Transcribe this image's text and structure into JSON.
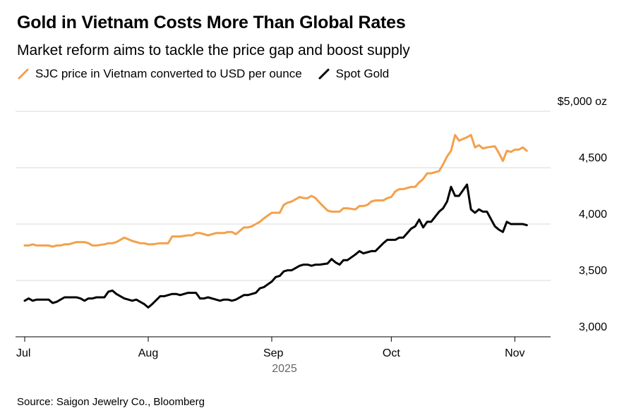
{
  "title": "Gold in Vietnam Costs More Than Global Rates",
  "subtitle": "Market reform aims to tackle the price gap and boost supply",
  "source": "Source: Saigon Jewelry Co., Bloomberg",
  "colors": {
    "sjc": "#f4a04a",
    "spot": "#000000",
    "grid": "#d9d9d9"
  },
  "chart_data": {
    "type": "line",
    "ylim": [
      3000,
      5000
    ],
    "y_ticks": [
      {
        "value": 3000,
        "label": "3,000"
      },
      {
        "value": 3500,
        "label": "3,500"
      },
      {
        "value": 4000,
        "label": "4,000"
      },
      {
        "value": 4500,
        "label": "4,500"
      },
      {
        "value": 5000,
        "label": "$5,000 oz"
      }
    ],
    "x_ticks": [
      {
        "value": "2025-07-01",
        "label": "Jul"
      },
      {
        "value": "2025-08-01",
        "label": "Aug"
      },
      {
        "value": "2025-09-01",
        "label": "Sep"
      },
      {
        "value": "2025-10-01",
        "label": "Oct"
      },
      {
        "value": "2025-11-01",
        "label": "Nov"
      }
    ],
    "year_label": "2025",
    "xlim": [
      "2025-07-01",
      "2025-11-04"
    ],
    "grid": true,
    "legend_position": "top-left",
    "series": [
      {
        "name": "SJC price in Vietnam converted to USD per ounce",
        "color": "#f4a04a",
        "points": [
          [
            "2025-07-01",
            3810
          ],
          [
            "2025-07-02",
            3810
          ],
          [
            "2025-07-03",
            3820
          ],
          [
            "2025-07-04",
            3810
          ],
          [
            "2025-07-05",
            3810
          ],
          [
            "2025-07-07",
            3810
          ],
          [
            "2025-07-08",
            3800
          ],
          [
            "2025-07-09",
            3810
          ],
          [
            "2025-07-10",
            3810
          ],
          [
            "2025-07-11",
            3820
          ],
          [
            "2025-07-12",
            3820
          ],
          [
            "2025-07-14",
            3840
          ],
          [
            "2025-07-15",
            3840
          ],
          [
            "2025-07-16",
            3840
          ],
          [
            "2025-07-17",
            3830
          ],
          [
            "2025-07-18",
            3810
          ],
          [
            "2025-07-19",
            3810
          ],
          [
            "2025-07-21",
            3820
          ],
          [
            "2025-07-22",
            3830
          ],
          [
            "2025-07-23",
            3830
          ],
          [
            "2025-07-24",
            3840
          ],
          [
            "2025-07-25",
            3860
          ],
          [
            "2025-07-26",
            3880
          ],
          [
            "2025-07-28",
            3850
          ],
          [
            "2025-07-29",
            3840
          ],
          [
            "2025-07-30",
            3830
          ],
          [
            "2025-07-31",
            3830
          ],
          [
            "2025-08-01",
            3820
          ],
          [
            "2025-08-02",
            3820
          ],
          [
            "2025-08-04",
            3830
          ],
          [
            "2025-08-05",
            3830
          ],
          [
            "2025-08-06",
            3830
          ],
          [
            "2025-08-07",
            3890
          ],
          [
            "2025-08-08",
            3890
          ],
          [
            "2025-08-09",
            3890
          ],
          [
            "2025-08-11",
            3900
          ],
          [
            "2025-08-12",
            3900
          ],
          [
            "2025-08-13",
            3920
          ],
          [
            "2025-08-14",
            3920
          ],
          [
            "2025-08-15",
            3910
          ],
          [
            "2025-08-16",
            3900
          ],
          [
            "2025-08-18",
            3920
          ],
          [
            "2025-08-19",
            3920
          ],
          [
            "2025-08-20",
            3920
          ],
          [
            "2025-08-21",
            3930
          ],
          [
            "2025-08-22",
            3930
          ],
          [
            "2025-08-23",
            3910
          ],
          [
            "2025-08-25",
            3970
          ],
          [
            "2025-08-26",
            3970
          ],
          [
            "2025-08-27",
            3980
          ],
          [
            "2025-08-28",
            4000
          ],
          [
            "2025-08-29",
            4020
          ],
          [
            "2025-08-30",
            4050
          ],
          [
            "2025-09-01",
            4100
          ],
          [
            "2025-09-02",
            4100
          ],
          [
            "2025-09-03",
            4100
          ],
          [
            "2025-09-04",
            4170
          ],
          [
            "2025-09-05",
            4190
          ],
          [
            "2025-09-06",
            4200
          ],
          [
            "2025-09-08",
            4240
          ],
          [
            "2025-09-09",
            4230
          ],
          [
            "2025-09-10",
            4230
          ],
          [
            "2025-09-11",
            4250
          ],
          [
            "2025-09-12",
            4230
          ],
          [
            "2025-09-13",
            4190
          ],
          [
            "2025-09-15",
            4120
          ],
          [
            "2025-09-16",
            4110
          ],
          [
            "2025-09-17",
            4110
          ],
          [
            "2025-09-18",
            4110
          ],
          [
            "2025-09-19",
            4140
          ],
          [
            "2025-09-20",
            4140
          ],
          [
            "2025-09-22",
            4130
          ],
          [
            "2025-09-23",
            4160
          ],
          [
            "2025-09-24",
            4160
          ],
          [
            "2025-09-25",
            4170
          ],
          [
            "2025-09-26",
            4200
          ],
          [
            "2025-09-27",
            4210
          ],
          [
            "2025-09-29",
            4210
          ],
          [
            "2025-09-30",
            4230
          ],
          [
            "2025-10-01",
            4240
          ],
          [
            "2025-10-02",
            4290
          ],
          [
            "2025-10-03",
            4310
          ],
          [
            "2025-10-04",
            4310
          ],
          [
            "2025-10-06",
            4330
          ],
          [
            "2025-10-07",
            4330
          ],
          [
            "2025-10-08",
            4370
          ],
          [
            "2025-10-09",
            4400
          ],
          [
            "2025-10-10",
            4450
          ],
          [
            "2025-10-11",
            4450
          ],
          [
            "2025-10-13",
            4470
          ],
          [
            "2025-10-14",
            4530
          ],
          [
            "2025-10-15",
            4600
          ],
          [
            "2025-10-16",
            4650
          ],
          [
            "2025-10-17",
            4790
          ],
          [
            "2025-10-18",
            4740
          ],
          [
            "2025-10-20",
            4770
          ],
          [
            "2025-10-21",
            4790
          ],
          [
            "2025-10-22",
            4680
          ],
          [
            "2025-10-23",
            4700
          ],
          [
            "2025-10-24",
            4670
          ],
          [
            "2025-10-25",
            4680
          ],
          [
            "2025-10-27",
            4690
          ],
          [
            "2025-10-28",
            4630
          ],
          [
            "2025-10-29",
            4560
          ],
          [
            "2025-10-30",
            4650
          ],
          [
            "2025-10-31",
            4640
          ],
          [
            "2025-11-01",
            4660
          ],
          [
            "2025-11-02",
            4660
          ],
          [
            "2025-11-03",
            4680
          ],
          [
            "2025-11-04",
            4650
          ]
        ]
      },
      {
        "name": "Spot Gold",
        "color": "#000000",
        "points": [
          [
            "2025-07-01",
            3320
          ],
          [
            "2025-07-02",
            3340
          ],
          [
            "2025-07-03",
            3320
          ],
          [
            "2025-07-04",
            3330
          ],
          [
            "2025-07-05",
            3330
          ],
          [
            "2025-07-07",
            3330
          ],
          [
            "2025-07-08",
            3300
          ],
          [
            "2025-07-09",
            3310
          ],
          [
            "2025-07-10",
            3330
          ],
          [
            "2025-07-11",
            3350
          ],
          [
            "2025-07-12",
            3350
          ],
          [
            "2025-07-14",
            3350
          ],
          [
            "2025-07-15",
            3340
          ],
          [
            "2025-07-16",
            3320
          ],
          [
            "2025-07-17",
            3340
          ],
          [
            "2025-07-18",
            3340
          ],
          [
            "2025-07-19",
            3350
          ],
          [
            "2025-07-21",
            3350
          ],
          [
            "2025-07-22",
            3400
          ],
          [
            "2025-07-23",
            3410
          ],
          [
            "2025-07-24",
            3380
          ],
          [
            "2025-07-25",
            3360
          ],
          [
            "2025-07-26",
            3340
          ],
          [
            "2025-07-28",
            3320
          ],
          [
            "2025-07-29",
            3330
          ],
          [
            "2025-07-30",
            3310
          ],
          [
            "2025-07-31",
            3290
          ],
          [
            "2025-08-01",
            3260
          ],
          [
            "2025-08-02",
            3290
          ],
          [
            "2025-08-04",
            3360
          ],
          [
            "2025-08-05",
            3360
          ],
          [
            "2025-08-06",
            3370
          ],
          [
            "2025-08-07",
            3380
          ],
          [
            "2025-08-08",
            3380
          ],
          [
            "2025-08-09",
            3370
          ],
          [
            "2025-08-11",
            3390
          ],
          [
            "2025-08-12",
            3390
          ],
          [
            "2025-08-13",
            3390
          ],
          [
            "2025-08-14",
            3340
          ],
          [
            "2025-08-15",
            3340
          ],
          [
            "2025-08-16",
            3350
          ],
          [
            "2025-08-18",
            3330
          ],
          [
            "2025-08-19",
            3320
          ],
          [
            "2025-08-20",
            3330
          ],
          [
            "2025-08-21",
            3330
          ],
          [
            "2025-08-22",
            3320
          ],
          [
            "2025-08-23",
            3330
          ],
          [
            "2025-08-25",
            3370
          ],
          [
            "2025-08-26",
            3370
          ],
          [
            "2025-08-27",
            3380
          ],
          [
            "2025-08-28",
            3390
          ],
          [
            "2025-08-29",
            3430
          ],
          [
            "2025-08-30",
            3440
          ],
          [
            "2025-09-01",
            3490
          ],
          [
            "2025-09-02",
            3530
          ],
          [
            "2025-09-03",
            3540
          ],
          [
            "2025-09-04",
            3580
          ],
          [
            "2025-09-05",
            3590
          ],
          [
            "2025-09-06",
            3590
          ],
          [
            "2025-09-08",
            3630
          ],
          [
            "2025-09-09",
            3640
          ],
          [
            "2025-09-10",
            3640
          ],
          [
            "2025-09-11",
            3630
          ],
          [
            "2025-09-12",
            3640
          ],
          [
            "2025-09-13",
            3640
          ],
          [
            "2025-09-15",
            3650
          ],
          [
            "2025-09-16",
            3690
          ],
          [
            "2025-09-17",
            3660
          ],
          [
            "2025-09-18",
            3640
          ],
          [
            "2025-09-19",
            3680
          ],
          [
            "2025-09-20",
            3680
          ],
          [
            "2025-09-22",
            3730
          ],
          [
            "2025-09-23",
            3760
          ],
          [
            "2025-09-24",
            3740
          ],
          [
            "2025-09-25",
            3750
          ],
          [
            "2025-09-26",
            3760
          ],
          [
            "2025-09-27",
            3760
          ],
          [
            "2025-09-29",
            3830
          ],
          [
            "2025-09-30",
            3860
          ],
          [
            "2025-10-01",
            3860
          ],
          [
            "2025-10-02",
            3860
          ],
          [
            "2025-10-03",
            3880
          ],
          [
            "2025-10-04",
            3880
          ],
          [
            "2025-10-06",
            3960
          ],
          [
            "2025-10-07",
            3980
          ],
          [
            "2025-10-08",
            4040
          ],
          [
            "2025-10-09",
            3970
          ],
          [
            "2025-10-10",
            4020
          ],
          [
            "2025-10-11",
            4020
          ],
          [
            "2025-10-13",
            4110
          ],
          [
            "2025-10-14",
            4140
          ],
          [
            "2025-10-15",
            4200
          ],
          [
            "2025-10-16",
            4330
          ],
          [
            "2025-10-17",
            4250
          ],
          [
            "2025-10-18",
            4250
          ],
          [
            "2025-10-20",
            4350
          ],
          [
            "2025-10-21",
            4130
          ],
          [
            "2025-10-22",
            4100
          ],
          [
            "2025-10-23",
            4130
          ],
          [
            "2025-10-24",
            4110
          ],
          [
            "2025-10-25",
            4110
          ],
          [
            "2025-10-27",
            3980
          ],
          [
            "2025-10-28",
            3950
          ],
          [
            "2025-10-29",
            3930
          ],
          [
            "2025-10-30",
            4020
          ],
          [
            "2025-10-31",
            4000
          ],
          [
            "2025-11-01",
            4000
          ],
          [
            "2025-11-02",
            4000
          ],
          [
            "2025-11-03",
            4000
          ],
          [
            "2025-11-04",
            3990
          ]
        ]
      }
    ]
  }
}
